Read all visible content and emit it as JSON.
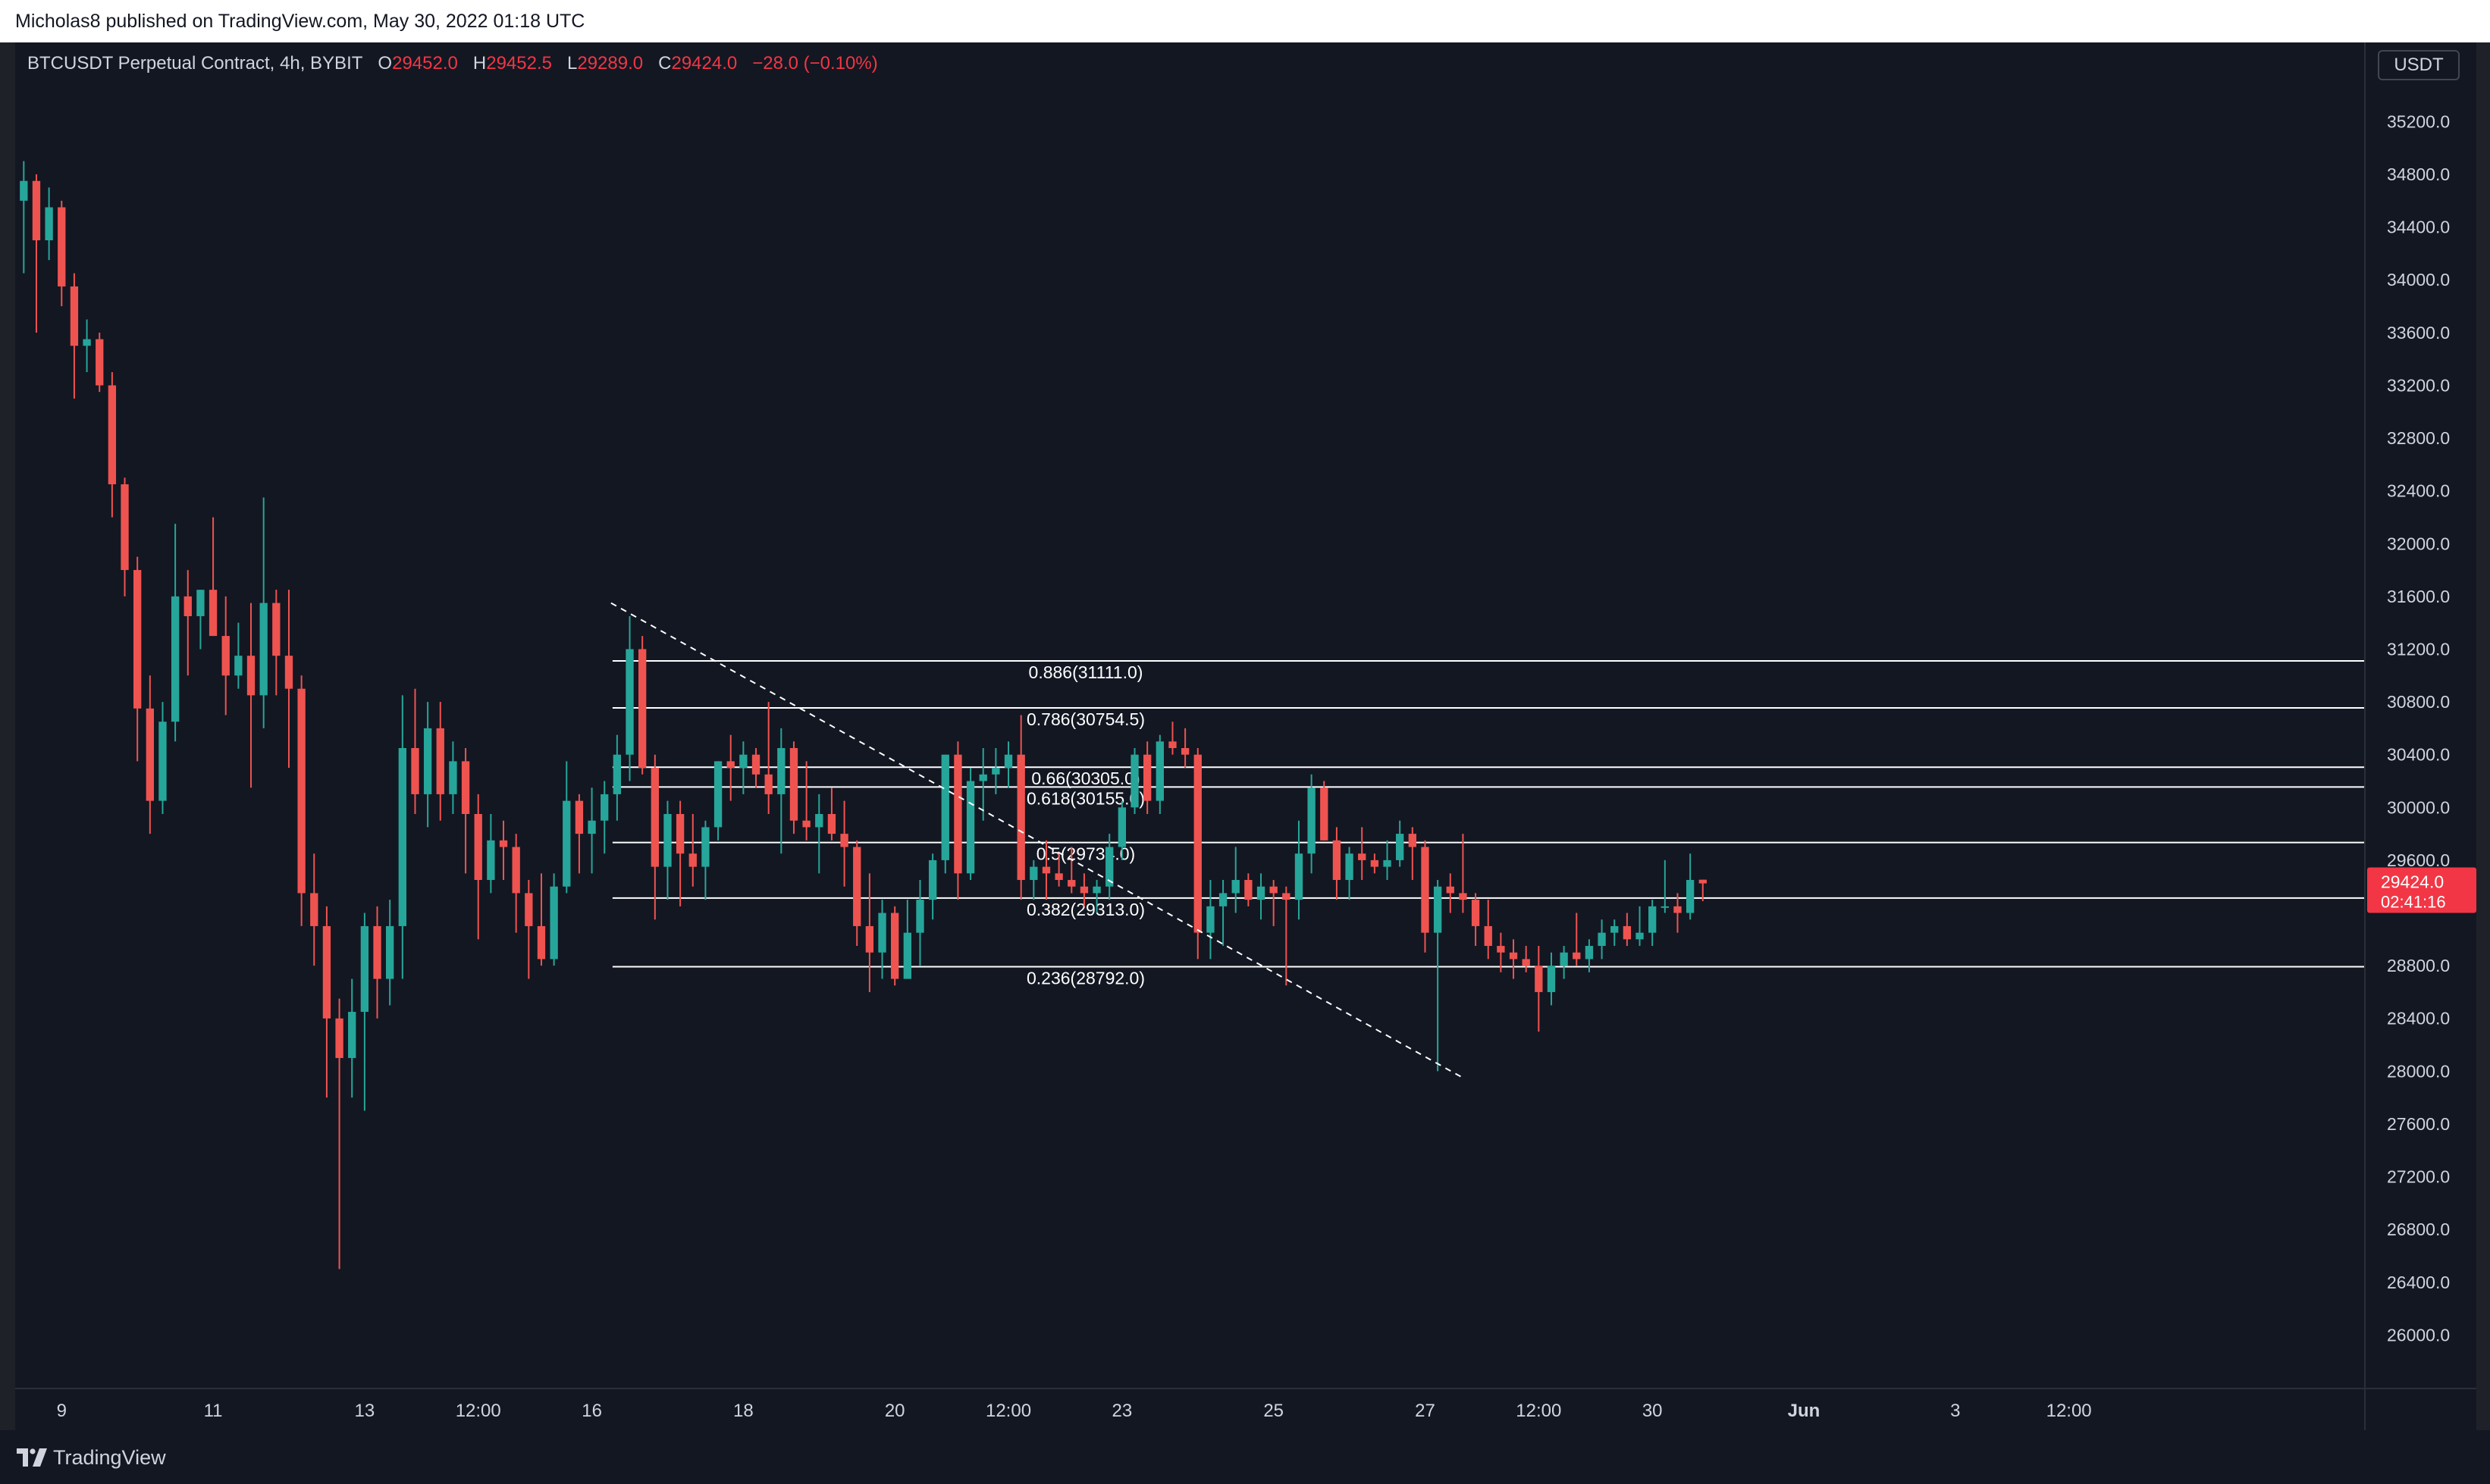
{
  "header": {
    "published_text": "Micholas8 published on TradingView.com, May 30, 2022 01:18 UTC"
  },
  "legend": {
    "symbol": "BTCUSDT Perpetual Contract, 4h, BYBIT",
    "open_label": "O",
    "open_value": "29452.0",
    "high_label": "H",
    "high_value": "29452.5",
    "low_label": "L",
    "low_value": "29289.0",
    "close_label": "C",
    "close_value": "29424.0",
    "change": "−28.0 (−0.10%)"
  },
  "currency_button": "USDT",
  "last_price": {
    "value": "29424.0",
    "countdown": "02:41:16"
  },
  "footer": {
    "brand": "TradingView"
  },
  "colors": {
    "background": "#131722",
    "up": "#26a69a",
    "down": "#ef5350",
    "text": "#d1d4dc",
    "fib_line": "#ffffff",
    "last_price_tag": "#f23645"
  },
  "chart_data": {
    "type": "candlestick",
    "symbol": "BTCUSDT",
    "interval": "4h",
    "ylim": [
      25600,
      35800
    ],
    "y_ticks": [
      26000,
      26400,
      26800,
      27200,
      27600,
      28000,
      28400,
      28800,
      29200,
      29600,
      30000,
      30400,
      30800,
      31200,
      31600,
      32000,
      32400,
      32800,
      33200,
      33600,
      34000,
      34400,
      34800,
      35200
    ],
    "y_tick_labels": [
      "26000.0",
      "26400.0",
      "26800.0",
      "27200.0",
      "27600.0",
      "28000.0",
      "28400.0",
      "28800.0",
      "",
      "29600.0",
      "30000.0",
      "30400.0",
      "30800.0",
      "31200.0",
      "31600.0",
      "32000.0",
      "32400.0",
      "32800.0",
      "33200.0",
      "33600.0",
      "34000.0",
      "34400.0",
      "34800.0",
      "35200.0"
    ],
    "x_labels": [
      {
        "label": "9",
        "bar": 3
      },
      {
        "label": "11",
        "bar": 15
      },
      {
        "label": "13",
        "bar": 27
      },
      {
        "label": "12:00",
        "bar": 36
      },
      {
        "label": "16",
        "bar": 45
      },
      {
        "label": "18",
        "bar": 57
      },
      {
        "label": "20",
        "bar": 69
      },
      {
        "label": "12:00",
        "bar": 78
      },
      {
        "label": "23",
        "bar": 87
      },
      {
        "label": "25",
        "bar": 99
      },
      {
        "label": "27",
        "bar": 111
      },
      {
        "label": "12:00",
        "bar": 120
      },
      {
        "label": "30",
        "bar": 129
      },
      {
        "label": "Jun",
        "bar": 141
      },
      {
        "label": "3",
        "bar": 153
      },
      {
        "label": "12:00",
        "bar": 162
      }
    ],
    "ohlc": [
      [
        34600,
        34900,
        34050,
        34750
      ],
      [
        34750,
        34800,
        33600,
        34300
      ],
      [
        34300,
        34700,
        34150,
        34550
      ],
      [
        34550,
        34600,
        33800,
        33950
      ],
      [
        33950,
        34050,
        33100,
        33500
      ],
      [
        33500,
        33700,
        33300,
        33550
      ],
      [
        33550,
        33600,
        33150,
        33200
      ],
      [
        33200,
        33300,
        32200,
        32450
      ],
      [
        32450,
        32500,
        31600,
        31800
      ],
      [
        31800,
        31900,
        30350,
        30750
      ],
      [
        30750,
        31000,
        29800,
        30050
      ],
      [
        30050,
        30800,
        29950,
        30650
      ],
      [
        30650,
        32150,
        30500,
        31600
      ],
      [
        31600,
        31800,
        31000,
        31450
      ],
      [
        31450,
        31650,
        31200,
        31650
      ],
      [
        31650,
        32200,
        31300,
        31300
      ],
      [
        31300,
        31600,
        30700,
        31000
      ],
      [
        31000,
        31400,
        30900,
        31150
      ],
      [
        31150,
        31550,
        30150,
        30850
      ],
      [
        30850,
        32350,
        30600,
        31550
      ],
      [
        31550,
        31650,
        30850,
        31150
      ],
      [
        31150,
        31650,
        30300,
        30900
      ],
      [
        30900,
        31000,
        29100,
        29350
      ],
      [
        29350,
        29650,
        28800,
        29100
      ],
      [
        29100,
        29250,
        27800,
        28400
      ],
      [
        28400,
        28550,
        26500,
        28100
      ],
      [
        28100,
        28700,
        27800,
        28450
      ],
      [
        28450,
        29200,
        27700,
        29100
      ],
      [
        29100,
        29250,
        28400,
        28700
      ],
      [
        28700,
        29300,
        28500,
        29100
      ],
      [
        29100,
        30850,
        28700,
        30450
      ],
      [
        30450,
        30900,
        29950,
        30100
      ],
      [
        30100,
        30800,
        29850,
        30600
      ],
      [
        30600,
        30800,
        29900,
        30100
      ],
      [
        30100,
        30500,
        29950,
        30350
      ],
      [
        30350,
        30450,
        29500,
        29950
      ],
      [
        29950,
        30100,
        29000,
        29450
      ],
      [
        29450,
        29950,
        29350,
        29750
      ],
      [
        29750,
        29900,
        29450,
        29700
      ],
      [
        29700,
        29800,
        29050,
        29350
      ],
      [
        29350,
        29450,
        28700,
        29100
      ],
      [
        29100,
        29500,
        28800,
        28850
      ],
      [
        28850,
        29500,
        28800,
        29400
      ],
      [
        29400,
        30350,
        29350,
        30050
      ],
      [
        30050,
        30100,
        29500,
        29800
      ],
      [
        29800,
        30150,
        29500,
        29900
      ],
      [
        29900,
        30200,
        29650,
        30100
      ],
      [
        30100,
        30550,
        29900,
        30400
      ],
      [
        30400,
        31450,
        30200,
        31200
      ],
      [
        31200,
        31300,
        30250,
        30300
      ],
      [
        30300,
        30400,
        29150,
        29550
      ],
      [
        29550,
        30050,
        29300,
        29950
      ],
      [
        29950,
        30050,
        29250,
        29650
      ],
      [
        29650,
        29950,
        29400,
        29550
      ],
      [
        29550,
        29900,
        29300,
        29850
      ],
      [
        29850,
        30350,
        29750,
        30350
      ],
      [
        30350,
        30550,
        30050,
        30300
      ],
      [
        30300,
        30500,
        30100,
        30400
      ],
      [
        30400,
        30450,
        30150,
        30250
      ],
      [
        30250,
        30800,
        29950,
        30100
      ],
      [
        30100,
        30600,
        29650,
        30450
      ],
      [
        30450,
        30500,
        29800,
        29900
      ],
      [
        29900,
        30350,
        29750,
        29850
      ],
      [
        29850,
        30100,
        29500,
        29950
      ],
      [
        29950,
        30150,
        29750,
        29800
      ],
      [
        29800,
        30050,
        29400,
        29700
      ],
      [
        29700,
        29750,
        28950,
        29100
      ],
      [
        29100,
        29500,
        28600,
        28900
      ],
      [
        28900,
        29300,
        28700,
        29200
      ],
      [
        29200,
        29250,
        28650,
        28700
      ],
      [
        28700,
        29300,
        28700,
        29050
      ],
      [
        29050,
        29450,
        28800,
        29300
      ],
      [
        29300,
        29650,
        29150,
        29600
      ],
      [
        29600,
        30400,
        29500,
        30400
      ],
      [
        30400,
        30500,
        29300,
        29500
      ],
      [
        29500,
        30300,
        29450,
        30200
      ],
      [
        30200,
        30450,
        29900,
        30250
      ],
      [
        30250,
        30450,
        30100,
        30300
      ],
      [
        30300,
        30500,
        30150,
        30400
      ],
      [
        30400,
        30700,
        29300,
        29450
      ],
      [
        29450,
        29600,
        29300,
        29550
      ],
      [
        29550,
        29750,
        29300,
        29500
      ],
      [
        29500,
        29650,
        29400,
        29450
      ],
      [
        29450,
        29700,
        29350,
        29400
      ],
      [
        29400,
        29500,
        29250,
        29350
      ],
      [
        29350,
        29450,
        29200,
        29400
      ],
      [
        29400,
        29800,
        29300,
        29700
      ],
      [
        29700,
        30050,
        29600,
        30000
      ],
      [
        30000,
        30450,
        29950,
        30400
      ],
      [
        30400,
        30500,
        29950,
        30050
      ],
      [
        30050,
        30550,
        29950,
        30500
      ],
      [
        30500,
        30650,
        30400,
        30450
      ],
      [
        30450,
        30600,
        30300,
        30400
      ],
      [
        30400,
        30450,
        28850,
        29050
      ],
      [
        29050,
        29450,
        28850,
        29250
      ],
      [
        29250,
        29450,
        28950,
        29350
      ],
      [
        29350,
        29700,
        29200,
        29450
      ],
      [
        29450,
        29500,
        29250,
        29300
      ],
      [
        29300,
        29500,
        29150,
        29400
      ],
      [
        29400,
        29450,
        29100,
        29350
      ],
      [
        29350,
        29400,
        28650,
        29300
      ],
      [
        29300,
        29900,
        29150,
        29650
      ],
      [
        29650,
        30250,
        29500,
        30150
      ],
      [
        30150,
        30200,
        29750,
        29750
      ],
      [
        29750,
        29850,
        29300,
        29450
      ],
      [
        29450,
        29700,
        29300,
        29650
      ],
      [
        29650,
        29850,
        29450,
        29600
      ],
      [
        29600,
        29650,
        29500,
        29550
      ],
      [
        29550,
        29750,
        29450,
        29600
      ],
      [
        29600,
        29900,
        29550,
        29800
      ],
      [
        29800,
        29850,
        29450,
        29700
      ],
      [
        29700,
        29750,
        28900,
        29050
      ],
      [
        29050,
        29450,
        28000,
        29400
      ],
      [
        29400,
        29500,
        29200,
        29350
      ],
      [
        29350,
        29800,
        29200,
        29300
      ],
      [
        29300,
        29350,
        28950,
        29100
      ],
      [
        29100,
        29300,
        28850,
        28950
      ],
      [
        28950,
        29050,
        28750,
        28900
      ],
      [
        28900,
        29000,
        28700,
        28850
      ],
      [
        28850,
        28950,
        28750,
        28800
      ],
      [
        28800,
        28950,
        28300,
        28600
      ],
      [
        28600,
        28900,
        28500,
        28800
      ],
      [
        28800,
        28950,
        28700,
        28900
      ],
      [
        28900,
        29200,
        28800,
        28850
      ],
      [
        28850,
        29000,
        28750,
        28950
      ],
      [
        28950,
        29150,
        28850,
        29050
      ],
      [
        29050,
        29150,
        28950,
        29100
      ],
      [
        29100,
        29200,
        28950,
        29000
      ],
      [
        29000,
        29250,
        28950,
        29050
      ],
      [
        29050,
        29300,
        28950,
        29250
      ],
      [
        29250,
        29600,
        29200,
        29250
      ],
      [
        29250,
        29350,
        29050,
        29200
      ],
      [
        29200,
        29650,
        29150,
        29450
      ],
      [
        29452,
        29452.5,
        29289,
        29424
      ]
    ],
    "fib_levels": [
      {
        "ratio": "0.886",
        "price": 31111.0,
        "label": "0.886(31111.0)"
      },
      {
        "ratio": "0.786",
        "price": 30754.5,
        "label": "0.786(30754.5)"
      },
      {
        "ratio": "0.66",
        "price": 30305.0,
        "label": "0.66(30305.0)"
      },
      {
        "ratio": "0.618",
        "price": 30155.0,
        "label": "0.618(30155.0)"
      },
      {
        "ratio": "0.5",
        "price": 29734.0,
        "label": "0.5(29734.0)"
      },
      {
        "ratio": "0.382",
        "price": 29313.0,
        "label": "0.382(29313.0)"
      },
      {
        "ratio": "0.236",
        "price": 28792.0,
        "label": "0.236(28792.0)"
      }
    ],
    "fib_start_bar": 47,
    "trendline": {
      "from": {
        "bar": 47,
        "price": 31550
      },
      "to": {
        "bar": 114,
        "price": 27950
      }
    },
    "last_price": 29424.0
  }
}
